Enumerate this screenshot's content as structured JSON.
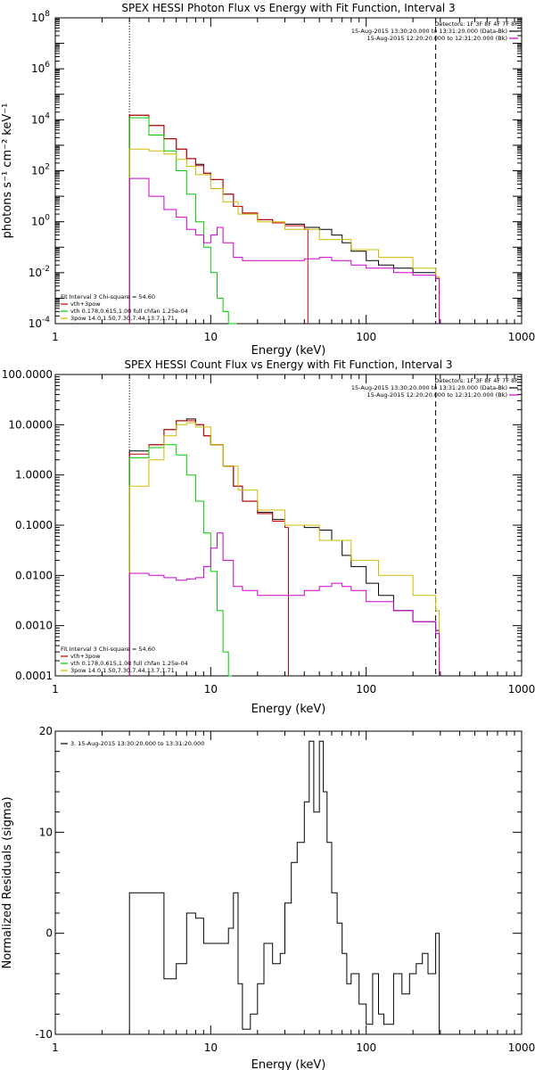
{
  "chart_data": [
    {
      "type": "line",
      "title": "SPEX HESSI Photon Flux vs Energy with Fit Function, Interval 3",
      "xlabel": "Energy (keV)",
      "ylabel": "photons s⁻¹ cm⁻² keV⁻¹",
      "xscale": "log",
      "yscale": "log",
      "xlim": [
        1,
        1000
      ],
      "ylim": [
        0.0001,
        100000000
      ],
      "x_ticks": [
        {
          "v": 1,
          "label": "1"
        },
        {
          "v": 10,
          "label": "10"
        },
        {
          "v": 100,
          "label": "100"
        },
        {
          "v": 1000,
          "label": "1000"
        }
      ],
      "y_ticks": [
        {
          "v": 0.0001,
          "b": "10",
          "e": "-4"
        },
        {
          "v": 0.01,
          "b": "10",
          "e": "-2"
        },
        {
          "v": 1,
          "b": "10",
          "e": "0"
        },
        {
          "v": 100,
          "b": "10",
          "e": "2"
        },
        {
          "v": 10000,
          "b": "10",
          "e": "4"
        },
        {
          "v": 1000000,
          "b": "10",
          "e": "6"
        },
        {
          "v": 100000000,
          "b": "10",
          "e": "8"
        }
      ],
      "vlines": [
        {
          "x": 3,
          "style": "dotted"
        },
        {
          "x": 280,
          "style": "dashed"
        }
      ],
      "detectors": "Detectors: 1F 3F 8F 4F 7F 8F",
      "legend_right": [
        {
          "text": "15-Aug-2015 13:30:20.000 to 13:31:20.000 (Data-Bk)",
          "color": "#000000"
        },
        {
          "text": "15-Aug-2015 12:20:20.000 to 12:31:20.000 (Bk)",
          "color": "#cc00cc"
        }
      ],
      "legend_left": [
        {
          "text": "Fit Interval 3   Chi-square = 54.60",
          "color": null
        },
        {
          "text": "vth+3pow",
          "color": "#cc0000"
        },
        {
          "text": "vth 0.178,0.615,1.00  full chfan 1.25e-04",
          "color": "#00cc00"
        },
        {
          "text": "3pow 14.0,1.50,7.30,7.44,13.7,1.71",
          "color": "#ccbb00"
        }
      ],
      "series": [
        {
          "color": "#000000",
          "x": [
            3,
            4,
            5,
            6,
            7,
            8,
            9,
            10,
            12,
            14,
            16,
            20,
            25,
            30,
            40,
            50,
            60,
            70,
            80,
            100,
            120,
            150,
            200,
            280
          ],
          "y": [
            15000,
            6000,
            1800,
            700,
            300,
            180,
            80,
            45,
            12,
            4,
            2.2,
            1.2,
            0.9,
            0.8,
            0.6,
            0.5,
            0.3,
            0.15,
            0.07,
            0.03,
            0.02,
            0.015,
            0.01,
            0.006
          ]
        },
        {
          "color": "#cc0000",
          "x": [
            3,
            4,
            5,
            6,
            7,
            8,
            9,
            10,
            12,
            14,
            16,
            20,
            25,
            30,
            40
          ],
          "y": [
            15000,
            6000,
            1800,
            700,
            300,
            160,
            80,
            45,
            12,
            4,
            2.2,
            1.2,
            0.9,
            0.7,
            0.5
          ]
        },
        {
          "color": "#00cc00",
          "x": [
            3,
            4,
            5,
            6,
            7,
            8,
            9,
            10,
            11,
            12,
            13,
            14
          ],
          "y": [
            12000,
            2500,
            600,
            100,
            12,
            1,
            0.1,
            0.01,
            0.001,
            0.0003,
            0.0001,
            0.0001
          ]
        },
        {
          "color": "#ccbb00",
          "x": [
            3,
            4,
            5,
            6,
            7,
            8,
            10,
            12,
            15,
            20,
            30,
            50,
            80,
            120,
            200,
            280
          ],
          "y": [
            700,
            600,
            450,
            280,
            150,
            70,
            20,
            6,
            2,
            1,
            0.5,
            0.2,
            0.08,
            0.04,
            0.015,
            0.007
          ]
        },
        {
          "color": "#cc00cc",
          "x": [
            3,
            4,
            5,
            6,
            7,
            8,
            9,
            10,
            11,
            12,
            14,
            16,
            20,
            25,
            30,
            40,
            50,
            60,
            80,
            100,
            150,
            200,
            280
          ],
          "y": [
            50,
            10,
            3,
            1.5,
            0.5,
            0.3,
            0.15,
            0.3,
            0.6,
            0.15,
            0.04,
            0.03,
            0.03,
            0.03,
            0.03,
            0.035,
            0.04,
            0.03,
            0.02,
            0.015,
            0.01,
            0.008,
            0.006
          ]
        }
      ]
    },
    {
      "type": "line",
      "title": "SPEX HESSI Count Flux vs Energy with Fit Function, Interval 3",
      "xlabel": "Energy (keV)",
      "ylabel": "",
      "xscale": "log",
      "yscale": "log",
      "xlim": [
        1,
        1000
      ],
      "ylim": [
        0.0001,
        100
      ],
      "x_ticks": [
        {
          "v": 1,
          "label": "1"
        },
        {
          "v": 10,
          "label": "10"
        },
        {
          "v": 100,
          "label": "100"
        },
        {
          "v": 1000,
          "label": "1000"
        }
      ],
      "y_ticks": [
        {
          "v": 0.0001,
          "label": "0.0001"
        },
        {
          "v": 0.001,
          "label": "0.0010"
        },
        {
          "v": 0.01,
          "label": "0.0100"
        },
        {
          "v": 0.1,
          "label": "0.1000"
        },
        {
          "v": 1,
          "label": "1.0000"
        },
        {
          "v": 10,
          "label": "10.0000"
        },
        {
          "v": 100,
          "label": "100.0000"
        }
      ],
      "vlines": [
        {
          "x": 3,
          "style": "dotted"
        },
        {
          "x": 280,
          "style": "dashed"
        }
      ],
      "detectors": "Detectors: 1F 3F 8F 4F 7F 8F",
      "legend_right": [
        {
          "text": "15-Aug-2015 13:30:20.000 to 13:31:20.000 (Data-Bk)",
          "color": "#000000"
        },
        {
          "text": "15-Aug-2015 12:20:20.000 to 12:31:20.000 (Bk)",
          "color": "#cc00cc"
        }
      ],
      "legend_left": [
        {
          "text": "Fit Interval 3   Chi-square = 54.60",
          "color": null
        },
        {
          "text": "vth+3pow",
          "color": "#cc0000"
        },
        {
          "text": "vth 0.178,0.615,1.00  full chfan 1.25e-04",
          "color": "#00cc00"
        },
        {
          "text": "3pow 14.0,1.50,7.30,7.44,13.7,1.71",
          "color": "#ccbb00"
        }
      ],
      "series": [
        {
          "color": "#000000",
          "x": [
            3,
            4,
            5,
            6,
            7,
            8,
            9,
            10,
            12,
            14,
            16,
            20,
            25,
            30,
            40,
            50,
            60,
            70,
            80,
            100,
            120,
            150,
            200,
            280
          ],
          "y": [
            3,
            4,
            8,
            12,
            13,
            10,
            6,
            4,
            1.5,
            0.6,
            0.3,
            0.18,
            0.13,
            0.1,
            0.09,
            0.08,
            0.05,
            0.025,
            0.015,
            0.007,
            0.004,
            0.002,
            0.0012,
            0.0008
          ]
        },
        {
          "color": "#cc0000",
          "x": [
            3,
            4,
            5,
            6,
            7,
            8,
            9,
            10,
            12,
            14,
            16,
            20,
            25,
            30
          ],
          "y": [
            2.6,
            4,
            8,
            12,
            12,
            10,
            6,
            4,
            1.5,
            0.6,
            0.3,
            0.17,
            0.12,
            0.09
          ]
        },
        {
          "color": "#00cc00",
          "x": [
            3,
            4,
            5,
            6,
            7,
            8,
            9,
            10,
            11,
            12,
            13
          ],
          "y": [
            2.2,
            3.5,
            4,
            2.5,
            1,
            0.3,
            0.07,
            0.012,
            0.002,
            0.0003,
            0.0001
          ]
        },
        {
          "color": "#ccbb00",
          "x": [
            3,
            4,
            5,
            6,
            7,
            8,
            10,
            12,
            15,
            20,
            30,
            50,
            80,
            120,
            200,
            280
          ],
          "y": [
            0.6,
            2,
            6,
            10,
            11,
            9,
            4,
            1.5,
            0.5,
            0.2,
            0.1,
            0.05,
            0.02,
            0.01,
            0.004,
            0.002
          ]
        },
        {
          "color": "#cc00cc",
          "x": [
            3,
            4,
            5,
            6,
            7,
            8,
            9,
            10,
            11,
            12,
            14,
            16,
            20,
            30,
            40,
            50,
            60,
            70,
            80,
            100,
            150,
            200,
            280
          ],
          "y": [
            0.011,
            0.01,
            0.009,
            0.008,
            0.0085,
            0.009,
            0.015,
            0.035,
            0.07,
            0.02,
            0.006,
            0.005,
            0.004,
            0.004,
            0.005,
            0.006,
            0.007,
            0.006,
            0.005,
            0.003,
            0.002,
            0.0012,
            0.0007
          ]
        }
      ]
    },
    {
      "type": "line",
      "title": "",
      "xlabel": "Energy (keV)",
      "ylabel": "Normalized Residuals (sigma)",
      "xscale": "log",
      "yscale": "linear",
      "xlim": [
        1,
        1000
      ],
      "ylim": [
        -10,
        20
      ],
      "x_ticks": [
        {
          "v": 1,
          "label": "1"
        },
        {
          "v": 10,
          "label": "10"
        },
        {
          "v": 100,
          "label": "100"
        },
        {
          "v": 1000,
          "label": "1000"
        }
      ],
      "y_ticks": [
        {
          "v": -10,
          "label": "-10"
        },
        {
          "v": 0,
          "label": "0"
        },
        {
          "v": 10,
          "label": "10"
        },
        {
          "v": 20,
          "label": "20"
        }
      ],
      "legend_left": [
        {
          "text": "3. 15-Aug-2015 13:30:20.000 to 13:31:20.000",
          "color": "#000000"
        }
      ],
      "series": [
        {
          "color": "#000000",
          "step": true,
          "x": [
            3,
            4,
            5,
            6,
            7,
            8,
            9,
            10,
            11,
            12,
            13,
            14,
            15,
            16,
            18,
            20,
            22,
            25,
            28,
            30,
            33,
            36,
            40,
            43,
            46,
            50,
            53,
            56,
            60,
            65,
            70,
            75,
            80,
            90,
            100,
            110,
            120,
            130,
            150,
            170,
            190,
            210,
            230,
            250,
            280
          ],
          "y": [
            4,
            4,
            -4.5,
            -3,
            2,
            1.5,
            -1,
            -1,
            -1,
            -1,
            0.5,
            4,
            -5,
            -9.5,
            -8,
            -5,
            -1,
            -3,
            -2,
            3,
            7,
            9,
            13,
            19,
            12,
            19,
            14,
            9,
            4,
            1,
            -2,
            -5,
            -4,
            -7,
            -9,
            -4,
            -8,
            -9,
            -4,
            -6,
            -4,
            -3,
            -2,
            -4,
            0
          ]
        }
      ]
    }
  ]
}
